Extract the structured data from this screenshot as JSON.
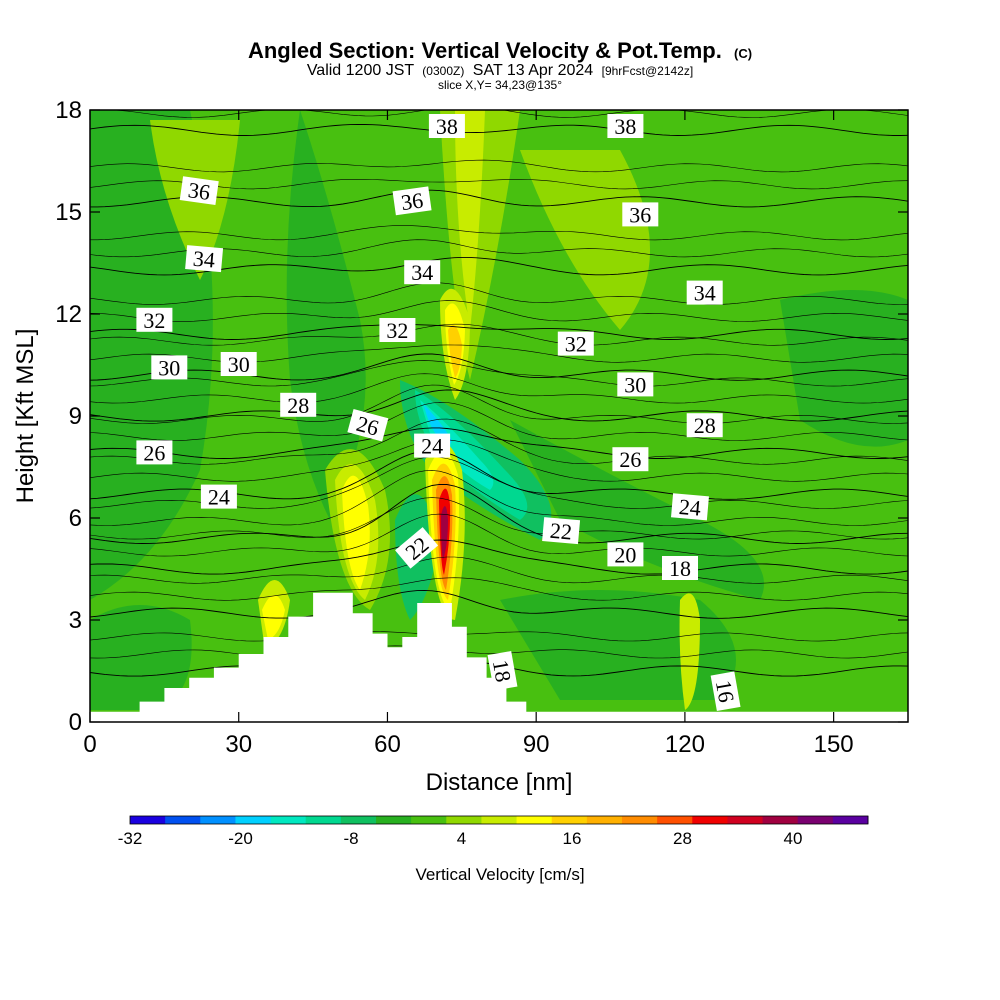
{
  "chart_data": {
    "type": "heatmap",
    "title": "Angled Section: Vertical Velocity & Pot.Temp.",
    "title_mark": "(C)",
    "subtitle": {
      "valid": "Valid 1200 JST",
      "utc": "(0300Z)",
      "date": "SAT 13 Apr 2024",
      "forecast": "[9hrFcst@2142z]"
    },
    "slice": "slice X,Y= 34,23@135°",
    "xlabel": "Distance [nm]",
    "ylabel": "Height [Kft MSL]",
    "xlim": [
      0,
      165
    ],
    "ylim": [
      0,
      18
    ],
    "xticks": [
      "0",
      "30",
      "60",
      "90",
      "120",
      "150"
    ],
    "yticks": [
      "0",
      "3",
      "6",
      "9",
      "12",
      "15",
      "18"
    ],
    "colorbar": {
      "label": "Vertical Velocity [cm/s]",
      "tick_labels": [
        "-32",
        "-20",
        "-8",
        "4",
        "16",
        "28",
        "40"
      ],
      "colors": [
        "#1a00e0",
        "#0050f0",
        "#0090ff",
        "#00d0ff",
        "#00e8c0",
        "#00d890",
        "#10c060",
        "#28b020",
        "#48c010",
        "#90d800",
        "#c8ec00",
        "#ffff00",
        "#ffd000",
        "#ffb000",
        "#ff8c00",
        "#ff5000",
        "#f00000",
        "#d00020",
        "#a00040",
        "#7a0070",
        "#5a00a0"
      ]
    },
    "terrain_profile": [
      {
        "x": 0,
        "h": 0.3
      },
      {
        "x": 10,
        "h": 0.6
      },
      {
        "x": 15,
        "h": 1.0
      },
      {
        "x": 20,
        "h": 1.3
      },
      {
        "x": 25,
        "h": 1.6
      },
      {
        "x": 30,
        "h": 2.0
      },
      {
        "x": 35,
        "h": 2.5
      },
      {
        "x": 40,
        "h": 3.1
      },
      {
        "x": 45,
        "h": 3.8
      },
      {
        "x": 50,
        "h": 3.8
      },
      {
        "x": 53,
        "h": 3.2
      },
      {
        "x": 57,
        "h": 2.6
      },
      {
        "x": 60,
        "h": 2.2
      },
      {
        "x": 63,
        "h": 2.5
      },
      {
        "x": 66,
        "h": 3.5
      },
      {
        "x": 70,
        "h": 3.5
      },
      {
        "x": 73,
        "h": 2.8
      },
      {
        "x": 76,
        "h": 1.9
      },
      {
        "x": 80,
        "h": 1.3
      },
      {
        "x": 84,
        "h": 0.6
      },
      {
        "x": 88,
        "h": 0.3
      },
      {
        "x": 165,
        "h": 0.3
      }
    ],
    "theta_contours": [
      {
        "value": 16,
        "y": 1.5,
        "bump": 0.2
      },
      {
        "value": 18,
        "y": 3.2,
        "bump": 0.6
      },
      {
        "value": 20,
        "y": 4.5,
        "bump": 1.0
      },
      {
        "value": 22,
        "y": 5.4,
        "bump": 1.5
      },
      {
        "value": 24,
        "y": 6.7,
        "bump": 1.2
      },
      {
        "value": 26,
        "y": 7.9,
        "bump": 0.9
      },
      {
        "value": 28,
        "y": 9.0,
        "bump": 0.7
      },
      {
        "value": 30,
        "y": 10.2,
        "bump": 0.5
      },
      {
        "value": 32,
        "y": 11.4,
        "bump": 0.4
      },
      {
        "value": 34,
        "y": 13.3,
        "bump": 0.3
      },
      {
        "value": 36,
        "y": 15.3,
        "bump": 0.2
      },
      {
        "value": 38,
        "y": 17.4,
        "bump": 0.1
      }
    ],
    "contour_labels": [
      {
        "text": "38",
        "x": 72,
        "y": 17.5,
        "rot": 0
      },
      {
        "text": "38",
        "x": 108,
        "y": 17.5,
        "rot": 0
      },
      {
        "text": "36",
        "x": 22,
        "y": 15.6,
        "rot": 8
      },
      {
        "text": "36",
        "x": 65,
        "y": 15.3,
        "rot": -8
      },
      {
        "text": "36",
        "x": 111,
        "y": 14.9,
        "rot": 0
      },
      {
        "text": "34",
        "x": 23,
        "y": 13.6,
        "rot": 5
      },
      {
        "text": "34",
        "x": 67,
        "y": 13.2,
        "rot": 0
      },
      {
        "text": "34",
        "x": 124,
        "y": 12.6,
        "rot": 0
      },
      {
        "text": "32",
        "x": 13,
        "y": 11.8,
        "rot": 0
      },
      {
        "text": "32",
        "x": 62,
        "y": 11.5,
        "rot": 0
      },
      {
        "text": "32",
        "x": 98,
        "y": 11.1,
        "rot": 0
      },
      {
        "text": "30",
        "x": 16,
        "y": 10.4,
        "rot": 0
      },
      {
        "text": "30",
        "x": 30,
        "y": 10.5,
        "rot": 0
      },
      {
        "text": "30",
        "x": 110,
        "y": 9.9,
        "rot": 0
      },
      {
        "text": "28",
        "x": 42,
        "y": 9.3,
        "rot": 0
      },
      {
        "text": "28",
        "x": 124,
        "y": 8.7,
        "rot": 0
      },
      {
        "text": "26",
        "x": 56,
        "y": 8.7,
        "rot": 15
      },
      {
        "text": "26",
        "x": 13,
        "y": 7.9,
        "rot": 0
      },
      {
        "text": "26",
        "x": 109,
        "y": 7.7,
        "rot": 0
      },
      {
        "text": "24",
        "x": 69,
        "y": 8.1,
        "rot": 0
      },
      {
        "text": "24",
        "x": 26,
        "y": 6.6,
        "rot": 0
      },
      {
        "text": "24",
        "x": 121,
        "y": 6.3,
        "rot": 5
      },
      {
        "text": "22",
        "x": 66,
        "y": 5.1,
        "rot": -40
      },
      {
        "text": "22",
        "x": 95,
        "y": 5.6,
        "rot": 5
      },
      {
        "text": "20",
        "x": 108,
        "y": 4.9,
        "rot": 0
      },
      {
        "text": "18",
        "x": 119,
        "y": 4.5,
        "rot": 0
      },
      {
        "text": "18",
        "x": 83,
        "y": 1.5,
        "rot": 80
      },
      {
        "text": "16",
        "x": 128,
        "y": 0.9,
        "rot": 80
      }
    ]
  }
}
